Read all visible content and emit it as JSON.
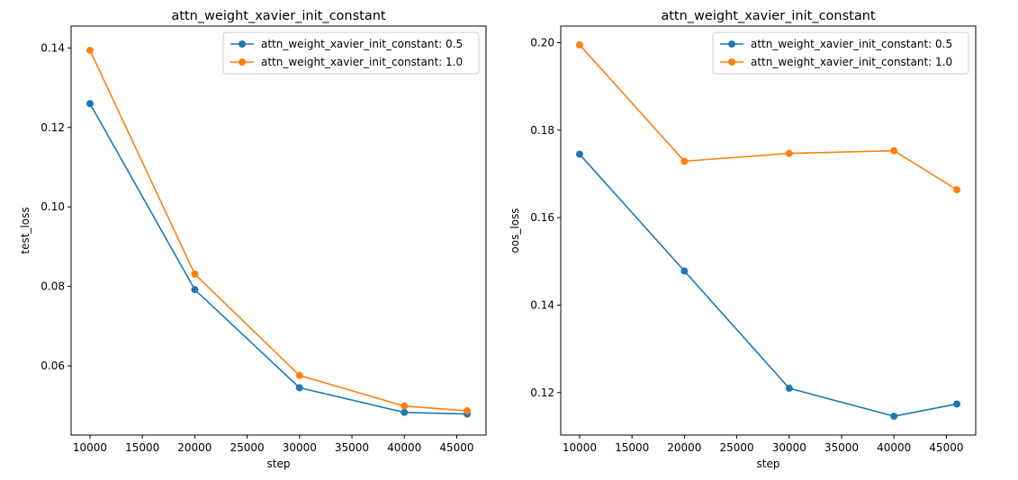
{
  "colors": {
    "series_0": "#1f77b4",
    "series_1": "#ff7f0e",
    "legend_border": "#cccccc"
  },
  "chart_data": [
    {
      "type": "line",
      "title": "attn_weight_xavier_init_constant",
      "xlabel": "step",
      "ylabel": "test_loss",
      "x": [
        10000,
        20000,
        30000,
        40000,
        46000
      ],
      "series": [
        {
          "name": "attn_weight_xavier_init_constant: 0.5",
          "values": [
            0.126,
            0.0792,
            0.0545,
            0.0483,
            0.0479
          ]
        },
        {
          "name": "attn_weight_xavier_init_constant: 1.0",
          "values": [
            0.1394,
            0.0831,
            0.0576,
            0.0499,
            0.0487
          ]
        }
      ],
      "xlim": [
        8200,
        47800
      ],
      "ylim": [
        0.0426,
        0.1455
      ],
      "xticks": [
        10000,
        15000,
        20000,
        25000,
        30000,
        35000,
        40000,
        45000
      ],
      "yticks": [
        0.06,
        0.08,
        0.1,
        0.12,
        0.14
      ],
      "ytick_labels": [
        "0.06",
        "0.08",
        "0.10",
        "0.12",
        "0.14"
      ],
      "grid": false,
      "legend": "top-right"
    },
    {
      "type": "line",
      "title": "attn_weight_xavier_init_constant",
      "xlabel": "step",
      "ylabel": "oos_loss",
      "x": [
        10000,
        20000,
        30000,
        40000,
        46000
      ],
      "series": [
        {
          "name": "attn_weight_xavier_init_constant: 0.5",
          "values": [
            0.1745,
            0.1478,
            0.121,
            0.1146,
            0.1174
          ]
        },
        {
          "name": "attn_weight_xavier_init_constant: 1.0",
          "values": [
            0.1995,
            0.1729,
            0.1747,
            0.1753,
            0.1664
          ]
        }
      ],
      "xlim": [
        8200,
        47800
      ],
      "ylim": [
        0.1103,
        0.2038
      ],
      "xticks": [
        10000,
        15000,
        20000,
        25000,
        30000,
        35000,
        40000,
        45000
      ],
      "yticks": [
        0.12,
        0.14,
        0.16,
        0.18,
        0.2
      ],
      "ytick_labels": [
        "0.12",
        "0.14",
        "0.16",
        "0.18",
        "0.20"
      ],
      "grid": false,
      "legend": "top-right"
    }
  ]
}
